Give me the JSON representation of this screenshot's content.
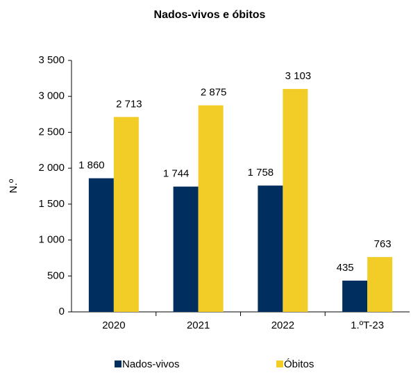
{
  "chart_data": {
    "type": "bar",
    "title": "Nados-vivos e óbitos",
    "y_label": "N.º",
    "categories": [
      "2020",
      "2021",
      "2022",
      "1.ºT-23"
    ],
    "series": [
      {
        "name": "Nados-vivos",
        "color": "#002e5e",
        "values": [
          1860,
          1744,
          1758,
          435
        ],
        "value_labels": [
          "1 860",
          "1 744",
          "1 758",
          "435"
        ]
      },
      {
        "name": "Óbitos",
        "color": "#f2cd28",
        "values": [
          2713,
          2875,
          3103,
          763
        ],
        "value_labels": [
          "2 713",
          "2 875",
          "3 103",
          "763"
        ]
      }
    ],
    "ylim": [
      0,
      3500
    ],
    "yticks": [
      0,
      500,
      {
        "value": 1000,
        "label": "1 000"
      },
      {
        "value": 1500,
        "label": "1 500"
      },
      {
        "value": 2000,
        "label": "2 000"
      },
      {
        "value": 2500,
        "label": "2 500"
      },
      {
        "value": 3000,
        "label": "3 000"
      },
      {
        "value": 3500,
        "label": "3 500"
      }
    ],
    "legend": "bottom"
  }
}
